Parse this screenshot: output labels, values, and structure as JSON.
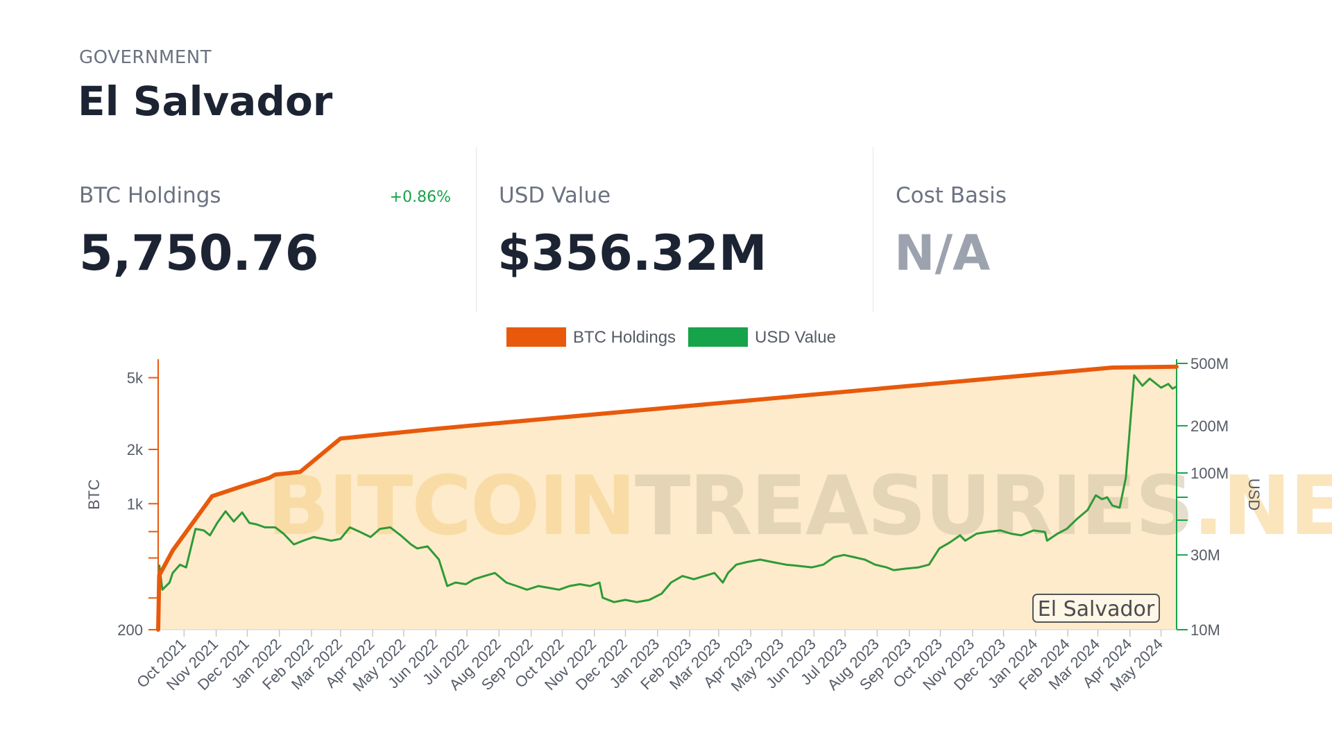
{
  "header": {
    "category": "GOVERNMENT",
    "entity": "El Salvador"
  },
  "stats": {
    "btc_holdings": {
      "label": "BTC Holdings",
      "value": "5,750.76",
      "change": "+0.86%"
    },
    "usd_value": {
      "label": "USD Value",
      "value": "$356.32M"
    },
    "cost_basis": {
      "label": "Cost Basis",
      "value": "N/A"
    }
  },
  "colors": {
    "btc": "#e8590c",
    "usd": "#16a34a",
    "usd_line": "#2e9a38",
    "area_fill": "#fdebcb",
    "change_positive": "#16a34a"
  },
  "chart_data": {
    "type": "line",
    "legend": [
      "BTC Holdings",
      "USD Value"
    ],
    "legend_position": "top-center",
    "watermark": {
      "part1": "BITCOIN",
      "part2": "TREASURIES",
      "part3": ".NET"
    },
    "badge": "El Salvador",
    "grid": false,
    "x_ticks": [
      "Oct 2021",
      "Nov 2021",
      "Dec 2021",
      "Jan 2022",
      "Feb 2022",
      "Mar 2022",
      "Apr 2022",
      "May 2022",
      "Jun 2022",
      "Jul 2022",
      "Aug 2022",
      "Sep 2022",
      "Oct 2022",
      "Nov 2022",
      "Dec 2022",
      "Jan 2023",
      "Feb 2023",
      "Mar 2023",
      "Apr 2023",
      "May 2023",
      "Jun 2023",
      "Jul 2023",
      "Aug 2023",
      "Sep 2023",
      "Oct 2023",
      "Nov 2023",
      "Dec 2023",
      "Jan 2024",
      "Feb 2024",
      "Mar 2024",
      "Apr 2024",
      "May 2024"
    ],
    "x_range": [
      "2021-09-06",
      "2024-05-16"
    ],
    "y_left": {
      "label": "BTC",
      "scale": "log",
      "range": [
        200,
        6000
      ],
      "ticks": [
        200,
        1000,
        2000,
        5000
      ],
      "tick_labels": [
        "200",
        "1k",
        "2k",
        "5k"
      ],
      "minor_ticks": [
        300,
        500,
        700
      ]
    },
    "y_right": {
      "label": "USD",
      "scale": "log",
      "range": [
        10000000,
        500000000
      ],
      "ticks": [
        10000000,
        30000000,
        100000000,
        200000000,
        500000000
      ],
      "tick_labels": [
        "10M",
        "30M",
        "100M",
        "200M",
        "500M"
      ],
      "minor_ticks": [
        50000000,
        70000000
      ]
    },
    "series": [
      {
        "name": "BTC Holdings",
        "axis": "left",
        "x": [
          "2021-09-06",
          "2021-09-07",
          "2021-09-20",
          "2021-10-28",
          "2021-11-26",
          "2021-12-22",
          "2021-12-28",
          "2022-01-21",
          "2022-03-01",
          "2022-06-01",
          "2022-07-01",
          "2024-03-15",
          "2024-05-16"
        ],
        "y": [
          200,
          400,
          550,
          1100,
          1250,
          1390,
          1450,
          1500,
          2300,
          2600,
          2700,
          5690,
          5750.76
        ]
      },
      {
        "name": "USD Value",
        "axis": "right",
        "x": [
          "2021-09-07",
          "2021-09-10",
          "2021-09-17",
          "2021-09-20",
          "2021-09-27",
          "2021-10-03",
          "2021-10-12",
          "2021-10-20",
          "2021-10-26",
          "2021-11-02",
          "2021-11-10",
          "2021-11-18",
          "2021-11-26",
          "2021-12-03",
          "2021-12-10",
          "2021-12-18",
          "2021-12-28",
          "2022-01-05",
          "2022-01-15",
          "2022-01-24",
          "2022-02-03",
          "2022-02-12",
          "2022-02-20",
          "2022-03-01",
          "2022-03-10",
          "2022-03-20",
          "2022-03-30",
          "2022-04-08",
          "2022-04-18",
          "2022-04-28",
          "2022-05-08",
          "2022-05-14",
          "2022-05-24",
          "2022-06-04",
          "2022-06-12",
          "2022-06-20",
          "2022-06-30",
          "2022-07-08",
          "2022-07-18",
          "2022-07-28",
          "2022-08-08",
          "2022-08-18",
          "2022-08-28",
          "2022-09-08",
          "2022-09-18",
          "2022-09-28",
          "2022-10-08",
          "2022-10-18",
          "2022-10-28",
          "2022-11-06",
          "2022-11-09",
          "2022-11-20",
          "2022-12-01",
          "2022-12-12",
          "2022-12-24",
          "2023-01-05",
          "2023-01-14",
          "2023-01-25",
          "2023-02-05",
          "2023-02-15",
          "2023-02-25",
          "2023-03-05",
          "2023-03-10",
          "2023-03-18",
          "2023-03-28",
          "2023-04-10",
          "2023-04-22",
          "2023-05-05",
          "2023-05-18",
          "2023-05-30",
          "2023-06-10",
          "2023-06-20",
          "2023-06-30",
          "2023-07-10",
          "2023-07-20",
          "2023-07-30",
          "2023-08-10",
          "2023-08-17",
          "2023-08-28",
          "2023-09-10",
          "2023-09-20",
          "2023-09-30",
          "2023-10-10",
          "2023-10-20",
          "2023-10-25",
          "2023-11-05",
          "2023-11-15",
          "2023-11-28",
          "2023-12-08",
          "2023-12-18",
          "2023-12-30",
          "2024-01-10",
          "2024-01-12",
          "2024-01-22",
          "2024-01-31",
          "2024-02-10",
          "2024-02-20",
          "2024-02-28",
          "2024-03-05",
          "2024-03-10",
          "2024-03-15",
          "2024-03-22",
          "2024-03-28",
          "2024-04-05",
          "2024-04-13",
          "2024-04-20",
          "2024-05-01",
          "2024-05-08",
          "2024-05-12",
          "2024-05-16"
        ],
        "y": [
          26000000,
          18000000,
          20000000,
          23000000,
          26000000,
          25000000,
          44000000,
          43000000,
          40000000,
          48000000,
          57000000,
          49000000,
          56000000,
          48000000,
          47000000,
          45000000,
          45000000,
          41000000,
          35000000,
          37000000,
          39000000,
          38000000,
          37000000,
          38000000,
          45000000,
          42000000,
          39000000,
          44000000,
          45000000,
          40000000,
          35000000,
          33000000,
          34000000,
          28000000,
          19000000,
          20000000,
          19500000,
          21000000,
          22000000,
          23000000,
          20000000,
          19000000,
          18000000,
          19000000,
          18500000,
          18000000,
          19000000,
          19500000,
          19000000,
          20000000,
          16000000,
          15000000,
          15500000,
          15000000,
          15500000,
          17000000,
          20000000,
          22000000,
          21000000,
          22000000,
          23000000,
          20000000,
          23000000,
          26000000,
          27000000,
          28000000,
          27000000,
          26000000,
          25500000,
          25000000,
          26000000,
          29000000,
          30000000,
          29000000,
          28000000,
          26000000,
          25000000,
          24000000,
          24500000,
          25000000,
          26000000,
          33000000,
          36000000,
          40000000,
          37000000,
          41000000,
          42000000,
          43000000,
          41000000,
          40000000,
          43000000,
          42000000,
          37000000,
          41000000,
          44000000,
          51000000,
          58000000,
          72000000,
          68000000,
          70000000,
          62000000,
          60000000,
          93000000,
          420000000,
          360000000,
          400000000,
          350000000,
          370000000,
          345000000,
          356320000
        ]
      }
    ]
  }
}
